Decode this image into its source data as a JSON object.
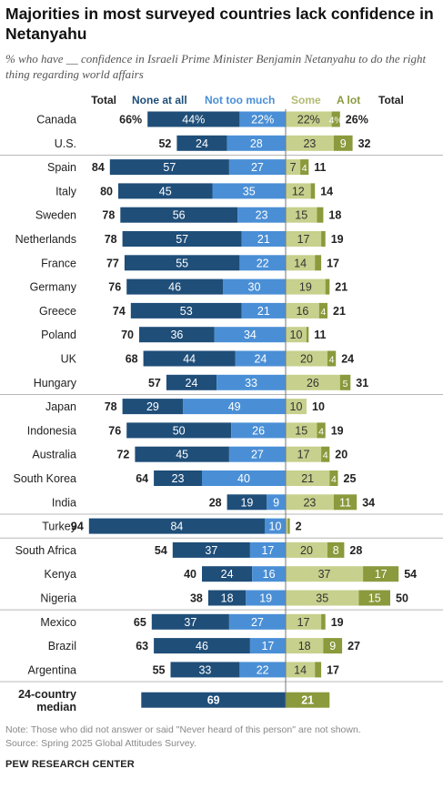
{
  "title": "Majorities in most surveyed countries lack confidence in Netanyahu",
  "subtitle": "% who have __ confidence in Israeli Prime Minister Benjamin Netanyahu to do the right thing regarding world affairs",
  "note": "Note: Those who did not answer or said \"Never heard of this person\" are not shown.",
  "source": "Source: Spring 2025 Global Attitudes Survey.",
  "organization": "PEW RESEARCH CENTER",
  "colors": {
    "none_at_all": "#1f4e79",
    "not_too_much": "#4a8fd6",
    "some": "#c7d08c",
    "a_lot": "#8a9a3c",
    "divider": "#b8b8b8"
  },
  "chart_data": {
    "type": "bar",
    "orientation": "horizontal diverging stacked",
    "header": {
      "total_left": "Total",
      "none_at_all": "None at all",
      "not_too_much": "Not too much",
      "some": "Some",
      "a_lot": "A lot",
      "total_right": "Total"
    },
    "series_names": [
      "None at all",
      "Not too much",
      "Some",
      "A lot"
    ],
    "rows": [
      {
        "country": "Canada",
        "total_neg": "66%",
        "none": 44,
        "none_label": "44%",
        "not_much": 22,
        "not_much_label": "22%",
        "some": 22,
        "some_label": "22%",
        "a_lot": 4,
        "a_lot_label": "4%",
        "total_pos": "26%",
        "group": 1
      },
      {
        "country": "U.S.",
        "total_neg": "52",
        "none": 24,
        "none_label": "24",
        "not_much": 28,
        "not_much_label": "28",
        "some": 23,
        "some_label": "23",
        "a_lot": 9,
        "a_lot_label": "9",
        "total_pos": "32",
        "group": 1
      },
      {
        "country": "Spain",
        "total_neg": "84",
        "none": 57,
        "none_label": "57",
        "not_much": 27,
        "not_much_label": "27",
        "some": 7,
        "some_label": "7",
        "a_lot": 4,
        "a_lot_label": "4",
        "total_pos": "11",
        "group": 2
      },
      {
        "country": "Italy",
        "total_neg": "80",
        "none": 45,
        "none_label": "45",
        "not_much": 35,
        "not_much_label": "35",
        "some": 12,
        "some_label": "12",
        "a_lot": 2,
        "a_lot_label": "",
        "total_pos": "14",
        "group": 2
      },
      {
        "country": "Sweden",
        "total_neg": "78",
        "none": 56,
        "none_label": "56",
        "not_much": 23,
        "not_much_label": "23",
        "some": 15,
        "some_label": "15",
        "a_lot": 3,
        "a_lot_label": "",
        "total_pos": "18",
        "group": 2
      },
      {
        "country": "Netherlands",
        "total_neg": "78",
        "none": 57,
        "none_label": "57",
        "not_much": 21,
        "not_much_label": "21",
        "some": 17,
        "some_label": "17",
        "a_lot": 2,
        "a_lot_label": "",
        "total_pos": "19",
        "group": 2
      },
      {
        "country": "France",
        "total_neg": "77",
        "none": 55,
        "none_label": "55",
        "not_much": 22,
        "not_much_label": "22",
        "some": 14,
        "some_label": "14",
        "a_lot": 3,
        "a_lot_label": "",
        "total_pos": "17",
        "group": 2
      },
      {
        "country": "Germany",
        "total_neg": "76",
        "none": 46,
        "none_label": "46",
        "not_much": 30,
        "not_much_label": "30",
        "some": 19,
        "some_label": "19",
        "a_lot": 2,
        "a_lot_label": "",
        "total_pos": "21",
        "group": 2
      },
      {
        "country": "Greece",
        "total_neg": "74",
        "none": 53,
        "none_label": "53",
        "not_much": 21,
        "not_much_label": "21",
        "some": 16,
        "some_label": "16",
        "a_lot": 4,
        "a_lot_label": "4",
        "total_pos": "21",
        "group": 2
      },
      {
        "country": "Poland",
        "total_neg": "70",
        "none": 36,
        "none_label": "36",
        "not_much": 34,
        "not_much_label": "34",
        "some": 10,
        "some_label": "10",
        "a_lot": 1,
        "a_lot_label": "",
        "total_pos": "11",
        "group": 2
      },
      {
        "country": "UK",
        "total_neg": "68",
        "none": 44,
        "none_label": "44",
        "not_much": 24,
        "not_much_label": "24",
        "some": 20,
        "some_label": "20",
        "a_lot": 4,
        "a_lot_label": "4",
        "total_pos": "24",
        "group": 2
      },
      {
        "country": "Hungary",
        "total_neg": "57",
        "none": 24,
        "none_label": "24",
        "not_much": 33,
        "not_much_label": "33",
        "some": 26,
        "some_label": "26",
        "a_lot": 5,
        "a_lot_label": "5",
        "total_pos": "31",
        "group": 2
      },
      {
        "country": "Japan",
        "total_neg": "78",
        "none": 29,
        "none_label": "29",
        "not_much": 49,
        "not_much_label": "49",
        "some": 10,
        "some_label": "10",
        "a_lot": 0,
        "a_lot_label": "",
        "total_pos": "10",
        "group": 3
      },
      {
        "country": "Indonesia",
        "total_neg": "76",
        "none": 50,
        "none_label": "50",
        "not_much": 26,
        "not_much_label": "26",
        "some": 15,
        "some_label": "15",
        "a_lot": 4,
        "a_lot_label": "4",
        "total_pos": "19",
        "group": 3
      },
      {
        "country": "Australia",
        "total_neg": "72",
        "none": 45,
        "none_label": "45",
        "not_much": 27,
        "not_much_label": "27",
        "some": 17,
        "some_label": "17",
        "a_lot": 4,
        "a_lot_label": "4",
        "total_pos": "20",
        "group": 3
      },
      {
        "country": "South Korea",
        "total_neg": "64",
        "none": 23,
        "none_label": "23",
        "not_much": 40,
        "not_much_label": "40",
        "some": 21,
        "some_label": "21",
        "a_lot": 4,
        "a_lot_label": "4",
        "total_pos": "25",
        "group": 3
      },
      {
        "country": "India",
        "total_neg": "28",
        "none": 19,
        "none_label": "19",
        "not_much": 9,
        "not_much_label": "9",
        "some": 23,
        "some_label": "23",
        "a_lot": 11,
        "a_lot_label": "11",
        "total_pos": "34",
        "group": 3
      },
      {
        "country": "Turkey",
        "total_neg": "94",
        "none": 84,
        "none_label": "84",
        "not_much": 10,
        "not_much_label": "10",
        "some": 1,
        "some_label": "",
        "a_lot": 1,
        "a_lot_label": "",
        "total_pos": "2",
        "group": 4
      },
      {
        "country": "South Africa",
        "total_neg": "54",
        "none": 37,
        "none_label": "37",
        "not_much": 17,
        "not_much_label": "17",
        "some": 20,
        "some_label": "20",
        "a_lot": 8,
        "a_lot_label": "8",
        "total_pos": "28",
        "group": 5
      },
      {
        "country": "Kenya",
        "total_neg": "40",
        "none": 24,
        "none_label": "24",
        "not_much": 16,
        "not_much_label": "16",
        "some": 37,
        "some_label": "37",
        "a_lot": 17,
        "a_lot_label": "17",
        "total_pos": "54",
        "group": 5
      },
      {
        "country": "Nigeria",
        "total_neg": "38",
        "none": 18,
        "none_label": "18",
        "not_much": 19,
        "not_much_label": "19",
        "some": 35,
        "some_label": "35",
        "a_lot": 15,
        "a_lot_label": "15",
        "total_pos": "50",
        "group": 5
      },
      {
        "country": "Mexico",
        "total_neg": "65",
        "none": 37,
        "none_label": "37",
        "not_much": 27,
        "not_much_label": "27",
        "some": 17,
        "some_label": "17",
        "a_lot": 2,
        "a_lot_label": "",
        "total_pos": "19",
        "group": 6
      },
      {
        "country": "Brazil",
        "total_neg": "63",
        "none": 46,
        "none_label": "46",
        "not_much": 17,
        "not_much_label": "17",
        "some": 18,
        "some_label": "18",
        "a_lot": 9,
        "a_lot_label": "9",
        "total_pos": "27",
        "group": 6
      },
      {
        "country": "Argentina",
        "total_neg": "55",
        "none": 33,
        "none_label": "33",
        "not_much": 22,
        "not_much_label": "22",
        "some": 14,
        "some_label": "14",
        "a_lot": 3,
        "a_lot_label": "",
        "total_pos": "17",
        "group": 6
      }
    ],
    "median": {
      "label_line1": "24-country",
      "label_line2": "median",
      "negative": 69,
      "negative_label": "69",
      "positive": 21,
      "positive_label": "21"
    }
  }
}
